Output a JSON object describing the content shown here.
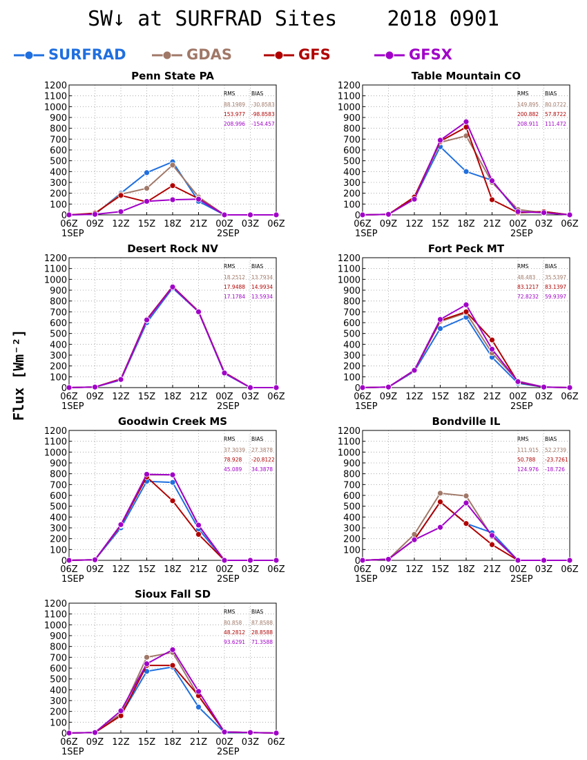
{
  "title": "SW↓ at SURFRAD Sites    2018 0901",
  "ylabel": "Flux [Wm⁻²]",
  "legend": [
    {
      "name": "SURFRAD",
      "color": "#1f6fdf"
    },
    {
      "name": "GDAS",
      "color": "#a07868"
    },
    {
      "name": "GFS",
      "color": "#b00000"
    },
    {
      "name": "GFSX",
      "color": "#a000c8"
    }
  ],
  "x_ticks": [
    "06Z",
    "09Z",
    "12Z",
    "15Z",
    "18Z",
    "21Z",
    "00Z",
    "03Z",
    "06Z"
  ],
  "date_labels": [
    "1SEP",
    "2SEP"
  ],
  "y_ticks": [
    0,
    100,
    200,
    300,
    400,
    500,
    600,
    700,
    800,
    900,
    1000,
    1100,
    1200
  ],
  "stats_headers": [
    "RMS",
    "BIAS"
  ],
  "chart_data": [
    {
      "type": "line",
      "title": "Penn State PA",
      "ylim": [
        0,
        1200
      ],
      "grid": true,
      "series": [
        {
          "name": "SURFRAD",
          "values": [
            0,
            5,
            200,
            390,
            490,
            125,
            0,
            0,
            0
          ]
        },
        {
          "name": "GDAS",
          "values": [
            0,
            10,
            190,
            245,
            460,
            165,
            0,
            0,
            0
          ]
        },
        {
          "name": "GFS",
          "values": [
            0,
            15,
            180,
            120,
            270,
            150,
            0,
            0,
            0
          ]
        },
        {
          "name": "GFSX",
          "values": [
            0,
            5,
            30,
            125,
            140,
            145,
            0,
            0,
            0
          ]
        }
      ],
      "stats": [
        [
          "88.1989",
          "-30.8583"
        ],
        [
          "153.977",
          "-98.8583"
        ],
        [
          "208.996",
          "-154.457"
        ]
      ]
    },
    {
      "type": "line",
      "title": "Table Mountain CO",
      "ylim": [
        0,
        1200
      ],
      "grid": true,
      "series": [
        {
          "name": "SURFRAD",
          "values": [
            0,
            5,
            150,
            630,
            400,
            320,
            20,
            30,
            0
          ]
        },
        {
          "name": "GDAS",
          "values": [
            0,
            5,
            155,
            670,
            730,
            300,
            50,
            20,
            0
          ]
        },
        {
          "name": "GFS",
          "values": [
            0,
            5,
            165,
            680,
            810,
            140,
            20,
            30,
            0
          ]
        },
        {
          "name": "GFSX",
          "values": [
            0,
            5,
            145,
            690,
            860,
            315,
            30,
            20,
            0
          ]
        }
      ],
      "stats": [
        [
          "149.895",
          "80.0722"
        ],
        [
          "200.882",
          "57.8722"
        ],
        [
          "208.911",
          "111.472"
        ]
      ]
    },
    {
      "type": "line",
      "title": "Desert Rock NV",
      "ylim": [
        0,
        1200
      ],
      "grid": true,
      "series": [
        {
          "name": "SURFRAD",
          "values": [
            0,
            5,
            70,
            600,
            920,
            700,
            130,
            0,
            0
          ]
        },
        {
          "name": "GDAS",
          "values": [
            0,
            5,
            75,
            620,
            930,
            700,
            140,
            0,
            0
          ]
        },
        {
          "name": "GFS",
          "values": [
            0,
            5,
            80,
            630,
            935,
            705,
            140,
            0,
            0
          ]
        },
        {
          "name": "GFSX",
          "values": [
            0,
            5,
            75,
            625,
            930,
            700,
            135,
            0,
            0
          ]
        }
      ],
      "stats": [
        [
          "18.2512",
          "13.7934"
        ],
        [
          "17.9488",
          "14.9934"
        ],
        [
          "17.1784",
          "13.5934"
        ]
      ]
    },
    {
      "type": "line",
      "title": "Fort Peck MT",
      "ylim": [
        0,
        1200
      ],
      "grid": true,
      "series": [
        {
          "name": "SURFRAD",
          "values": [
            0,
            5,
            150,
            545,
            650,
            280,
            40,
            5,
            0
          ]
        },
        {
          "name": "GDAS",
          "values": [
            0,
            5,
            155,
            610,
            690,
            320,
            60,
            5,
            0
          ]
        },
        {
          "name": "GFS",
          "values": [
            0,
            5,
            160,
            620,
            700,
            440,
            50,
            5,
            0
          ]
        },
        {
          "name": "GFSX",
          "values": [
            0,
            5,
            160,
            630,
            765,
            355,
            55,
            5,
            0
          ]
        }
      ],
      "stats": [
        [
          "48.483",
          "35.5397"
        ],
        [
          "83.1217",
          "83.1397"
        ],
        [
          "72.8232",
          "59.9397"
        ]
      ]
    },
    {
      "type": "line",
      "title": "Goodwin Creek MS",
      "ylim": [
        0,
        1200
      ],
      "grid": true,
      "series": [
        {
          "name": "SURFRAD",
          "values": [
            0,
            5,
            300,
            730,
            720,
            290,
            0,
            0,
            0
          ]
        },
        {
          "name": "GDAS",
          "values": [
            0,
            5,
            320,
            790,
            790,
            320,
            0,
            0,
            0
          ]
        },
        {
          "name": "GFS",
          "values": [
            0,
            5,
            325,
            770,
            550,
            240,
            0,
            0,
            0
          ]
        },
        {
          "name": "GFSX",
          "values": [
            0,
            5,
            330,
            795,
            790,
            325,
            0,
            0,
            0
          ]
        }
      ],
      "stats": [
        [
          "37.3039",
          "27.3878"
        ],
        [
          "78.928",
          "-20.8122"
        ],
        [
          "45.089",
          "34.3878"
        ]
      ]
    },
    {
      "type": "line",
      "title": "Bondville IL",
      "ylim": [
        0,
        1200
      ],
      "grid": true,
      "series": [
        {
          "name": "SURFRAD",
          "values": [
            0,
            10,
            190,
            540,
            340,
            255,
            0,
            0,
            0
          ]
        },
        {
          "name": "GDAS",
          "values": [
            0,
            10,
            240,
            620,
            595,
            220,
            0,
            0,
            0
          ]
        },
        {
          "name": "GFS",
          "values": [
            0,
            10,
            190,
            540,
            340,
            145,
            0,
            0,
            0
          ]
        },
        {
          "name": "GFSX",
          "values": [
            0,
            10,
            190,
            305,
            530,
            230,
            0,
            0,
            0
          ]
        }
      ],
      "stats": [
        [
          "111.915",
          "52.2739"
        ],
        [
          "50.788",
          "-23.7261"
        ],
        [
          "124.976",
          "-18.726"
        ]
      ]
    },
    {
      "type": "line",
      "title": "Sioux Fall SD",
      "ylim": [
        0,
        1200
      ],
      "grid": true,
      "series": [
        {
          "name": "SURFRAD",
          "values": [
            0,
            5,
            165,
            570,
            610,
            240,
            5,
            5,
            0
          ]
        },
        {
          "name": "GDAS",
          "values": [
            0,
            5,
            180,
            700,
            745,
            340,
            10,
            5,
            0
          ]
        },
        {
          "name": "GFS",
          "values": [
            0,
            5,
            160,
            625,
            625,
            345,
            10,
            5,
            0
          ]
        },
        {
          "name": "GFSX",
          "values": [
            0,
            5,
            205,
            640,
            770,
            385,
            10,
            5,
            0
          ]
        }
      ],
      "stats": [
        [
          "80.858",
          "87.8588"
        ],
        [
          "48.2812",
          "28.8588"
        ],
        [
          "93.6291",
          "71.3588"
        ]
      ]
    }
  ]
}
